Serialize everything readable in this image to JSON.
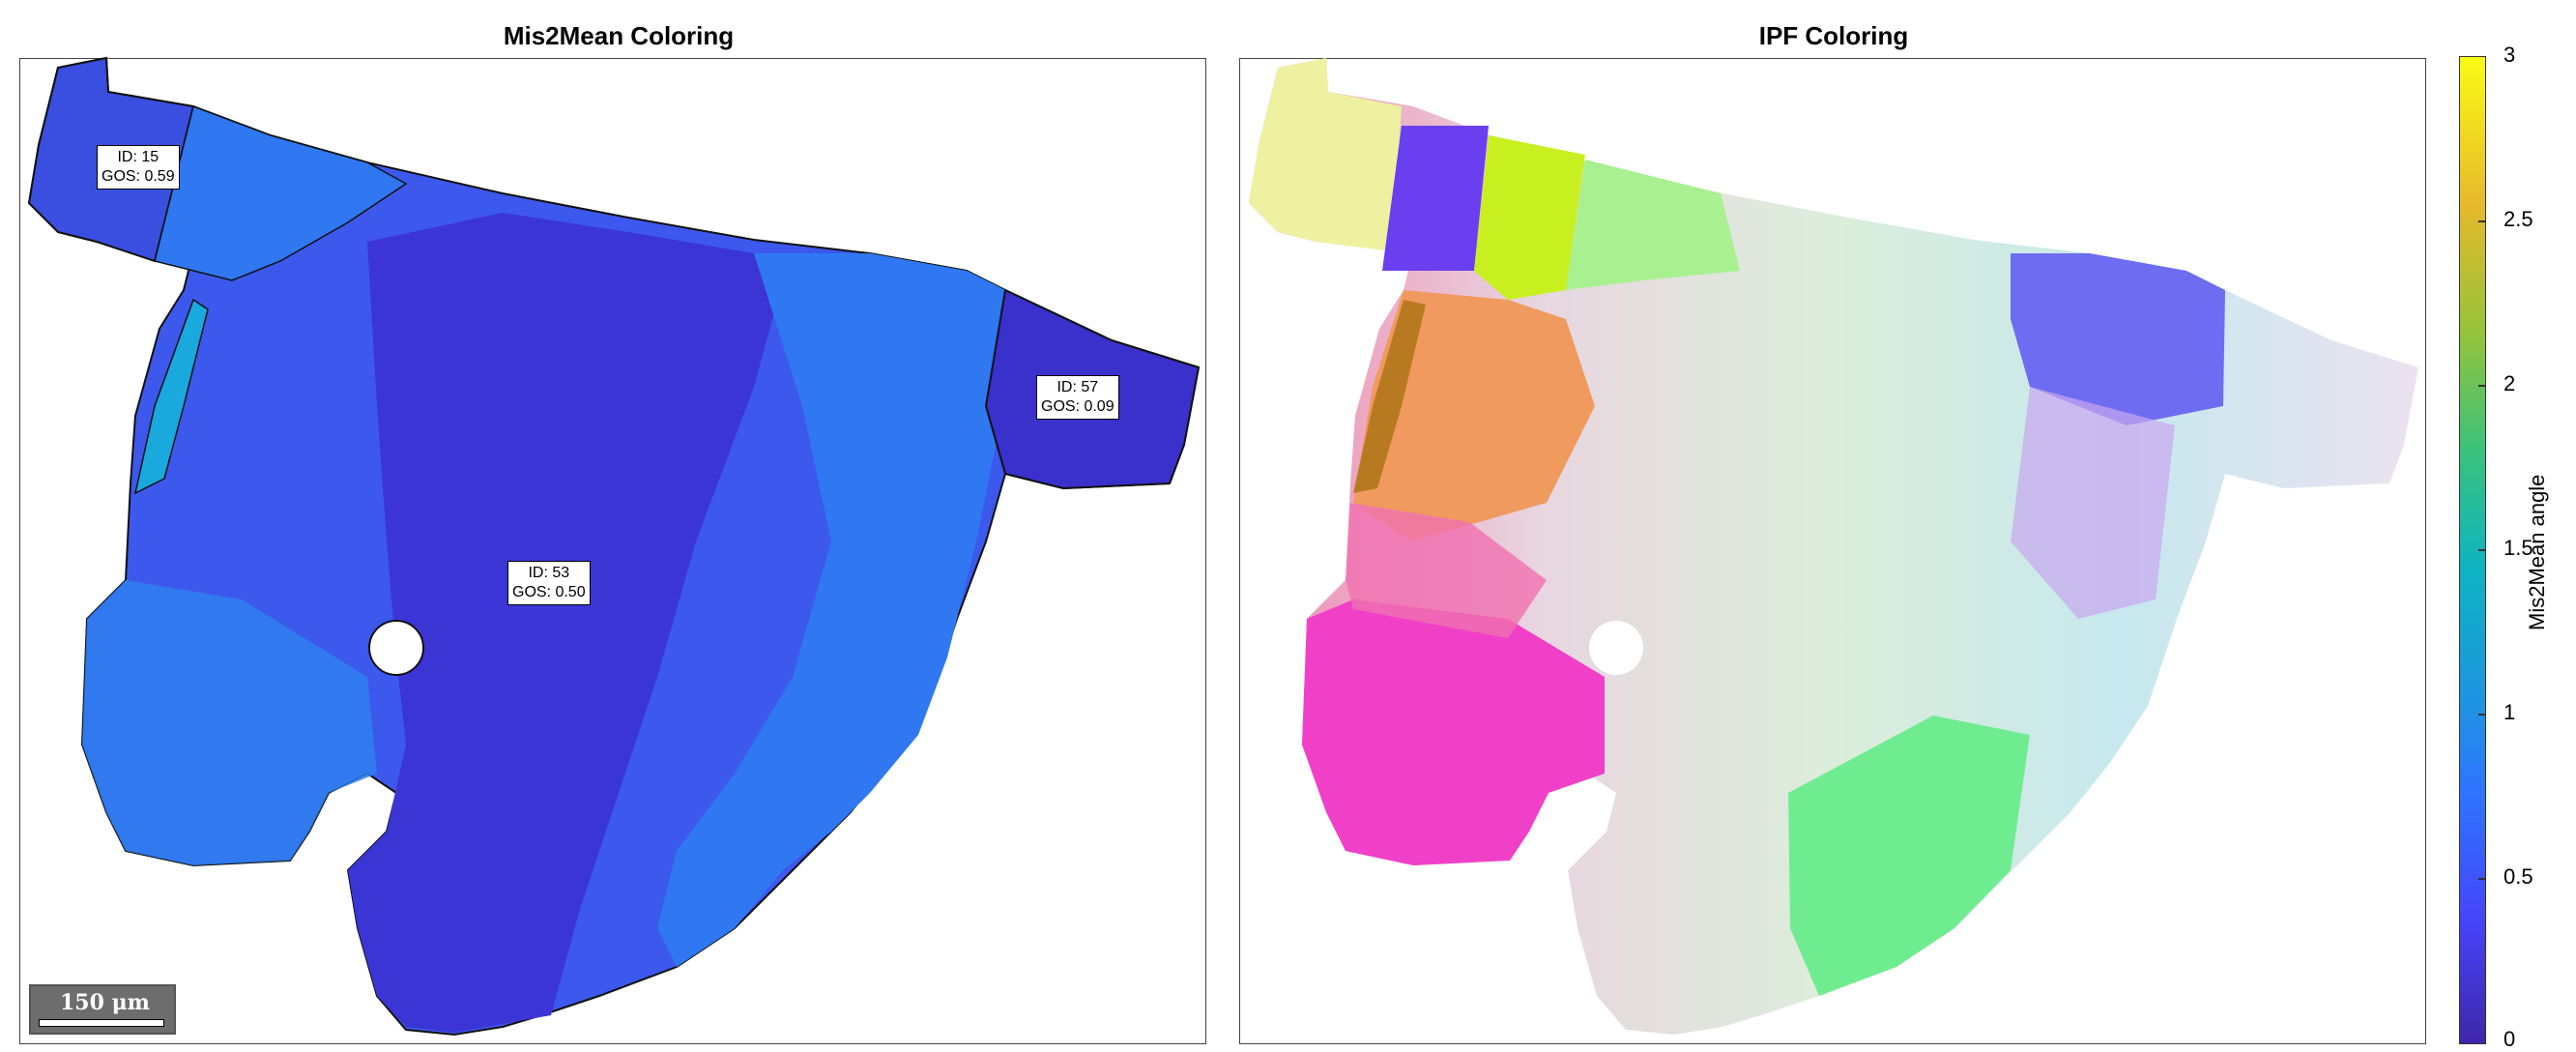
{
  "panels": {
    "left": {
      "title": "Mis2Mean Coloring",
      "grains": [
        {
          "id": "ID: 15",
          "gos": "GOS: 0.59"
        },
        {
          "id": "ID: 53",
          "gos": "GOS: 0.50"
        },
        {
          "id": "ID: 57",
          "gos": "GOS: 0.09"
        }
      ],
      "scalebar": "150 μm"
    },
    "right": {
      "title": "IPF Coloring"
    }
  },
  "colorbar": {
    "label": "Mis2Mean angle",
    "ticks": [
      "3",
      "2.5",
      "2",
      "1.5",
      "1",
      "0.5",
      "0"
    ],
    "range": [
      0,
      3
    ],
    "colormap": "parula"
  },
  "colors": {
    "grain_dark": "#3b35d6",
    "grain_mid": "#3d55ee",
    "grain_light": "#2f78f2",
    "grain_cyan": "#19a9dd"
  }
}
